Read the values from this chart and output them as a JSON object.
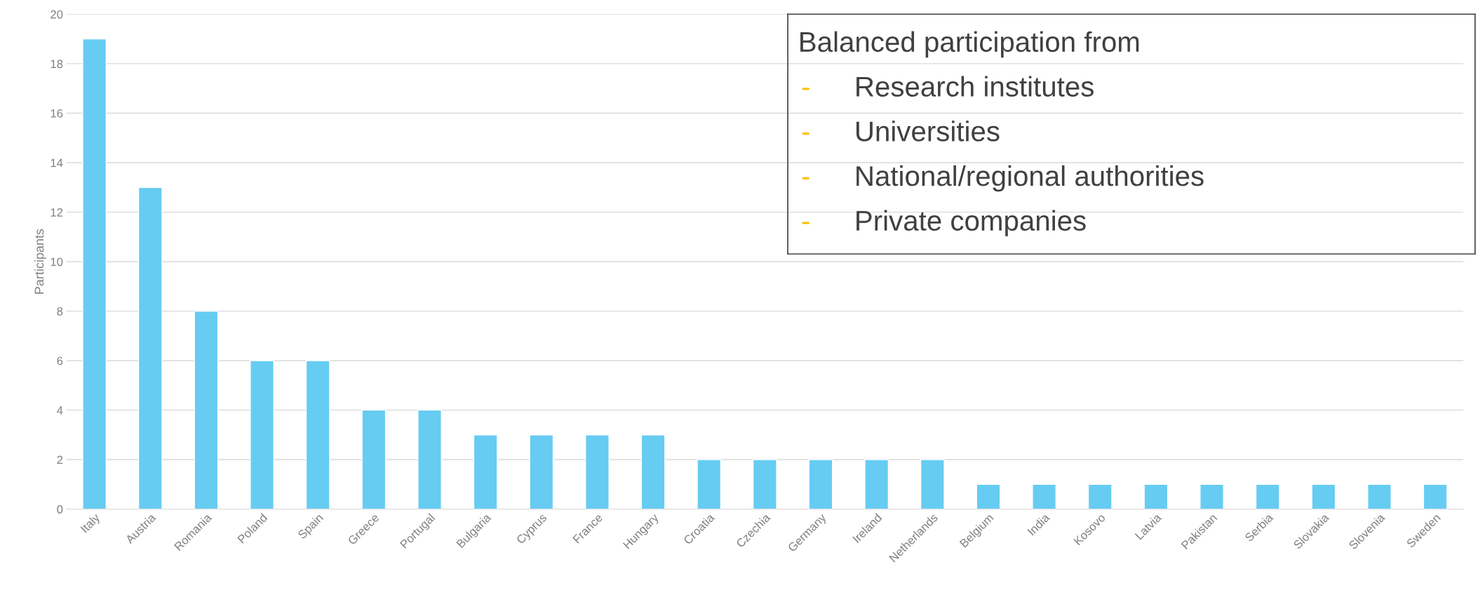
{
  "chart_data": {
    "type": "bar",
    "ylabel": "Participants",
    "categories": [
      "Italy",
      "Austria",
      "Romania",
      "Poland",
      "Spain",
      "Greece",
      "Portugal",
      "Bulgaria",
      "Cyprus",
      "France",
      "Hungary",
      "Croatia",
      "Czechia",
      "Germany",
      "Ireland",
      "Netherlands",
      "Belgium",
      "India",
      "Kosovo",
      "Latvia",
      "Pakistan",
      "Serbia",
      "Slovakia",
      "Slovenia",
      "Sweden"
    ],
    "values": [
      19,
      13,
      8,
      6,
      6,
      4,
      4,
      3,
      3,
      3,
      3,
      2,
      2,
      2,
      2,
      2,
      1,
      1,
      1,
      1,
      1,
      1,
      1,
      1,
      1
    ],
    "color": "#66ccf2",
    "ylim": [
      0,
      20
    ],
    "yticks": [
      0,
      2,
      4,
      6,
      8,
      10,
      12,
      14,
      16,
      18,
      20
    ],
    "grid": "y",
    "legend": false,
    "annotations": [
      "Balanced participation from",
      "- Research institutes",
      "- Universities",
      "- National/regional authorities",
      "- Private companies"
    ]
  }
}
